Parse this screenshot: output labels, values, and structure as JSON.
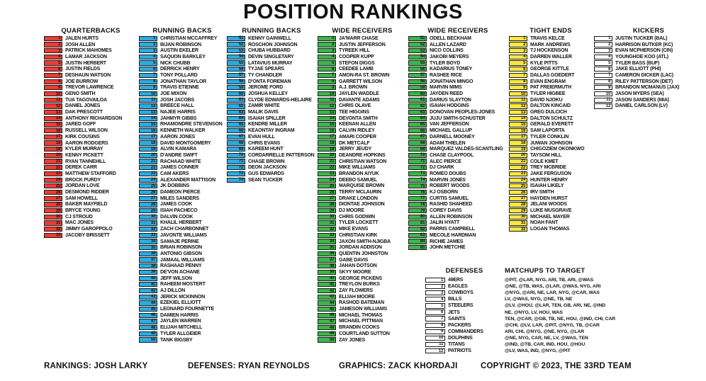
{
  "title": "POSITION RANKINGS",
  "colors": {
    "qb_red": "#ee3b33",
    "rb_blue": "#2babe2",
    "wr_green": "#3cb54a",
    "te_yellow": "#f9e73e",
    "plain_white": "#ffffff"
  },
  "columns": [
    {
      "header": "QUARTERBACKS",
      "start": 1,
      "color": "#ee3b33",
      "players": [
        "JALEN HURTS",
        "JOSH ALLEN",
        "PATRICK MAHOMES",
        "LAMAR JACKSON",
        "JUSTIN HERBERT",
        "JUSTIN FIELDS",
        "DESHAUN WATSON",
        "JOE BURROW",
        "TREVOR LAWRENCE",
        "GENO SMITH",
        "TUA TAGOVAILOA",
        "DANIEL JONES",
        "DAK PRESCOTT",
        "ANTHONY RICHARDSON",
        "JARED GOFF",
        "RUSSELL WILSON",
        "KIRK COUSINS",
        "AARON RODGERS",
        "KYLER MURRAY",
        "KENNY PICKETT",
        "RYAN TANNEHILL",
        "DEREK CARR",
        "MATTHEW STAFFORD",
        "BROCK PURDY",
        "JORDAN LOVE",
        "DESMOND RIDDER",
        "SAM HOWELL",
        "BAKER MAYFIELD",
        "BRYCE YOUNG",
        "CJ STROUD",
        "MAC JONES",
        "JIMMY GAROPPOLO",
        "JACOBY BRISSETT"
      ]
    },
    {
      "header": "RUNNING BACKS",
      "start": 1,
      "color": "#2babe2",
      "players": [
        "CHRISTIAN MCCAFFREY",
        "BIJAN ROBINSON",
        "AUSTIN EKELER",
        "SAQUON BARKLEY",
        "NICK CHUBB",
        "DERRICK HENRY",
        "TONY POLLARD",
        "JONATHAN TAYLOR",
        "TRAVIS ETIENNE",
        "JOE MIXON",
        "JOSH JACOBS",
        "BREECE HALL",
        "NAJEE HARRIS",
        "JAHMYR GIBBS",
        "RHAMONDRE STEVENSON",
        "KENNETH WALKER",
        "AARON JONES",
        "DAVID MONTGOMERY",
        "ALVIN KAMARA",
        "D'ANDRE SWIFT",
        "RACHAAD WHITE",
        "JAMES CONNER",
        "CAM AKERS",
        "ALEXANDER MATTISON",
        "JK DOBBINS",
        "DAMEON PIERCE",
        "MILES SANDERS",
        "JAMES COOK",
        "ISIAH PACHECO",
        "DALVIN COOK",
        "KHALIL HERBERT",
        "ZACH CHARBONNET",
        "JAVONTE WILLIAMS",
        "SAMAJE PERINE",
        "BRIAN ROBINSON",
        "ANTONIO GIBSON",
        "JAMAAL WILLIAMS",
        "RASHAAD PENNY",
        "DE'VON ACHANE",
        "JEFF WILSON",
        "RAHEEM MOSTERT",
        "AJ DILLON",
        "JERICK MCKINNON",
        "EZEKIEL ELLIOTT",
        "LEONARD FOURNETTE",
        "DAMIEN HARRIS",
        "JAYLEN WARREN",
        "ELIJAH MITCHELL",
        "TYLER ALLGEIER",
        "TANK BIGSBY"
      ]
    },
    {
      "header": "RUNNING BACKS",
      "start": 51,
      "color": "#2babe2",
      "players": [
        "KENNY GAINWELL",
        "ROSCHON JOHNSON",
        "CHUBA HUBBARD",
        "DEVIN SINGLETARY",
        "LATAVIUS MURRAY",
        "TYJAE SPEARS",
        "TY CHANDLER",
        "D'ONTA FOREMAN",
        "JEROME FORD",
        "JOSHUA KELLEY",
        "CLYDE EDWARDS-HELAIRE",
        "ZAMIR WHITE",
        "MALIK DAVIS",
        "ISAIAH SPILLER",
        "KENDRE MILLER",
        "KEAONTAY INGRAM",
        "EVAN HULL",
        "CHRIS EVANS",
        "KAREEM HUNT",
        "CORDARRELLE PATTERSON",
        "CHASE BROWN",
        "DEON JACKSON",
        "GUS EDWARDS",
        "SEAN TUCKER"
      ]
    },
    {
      "header": "WIDE RECEIVERS",
      "start": 1,
      "color": "#3cb54a",
      "players": [
        "JA'MARR CHASE",
        "JUSTIN JEFFERSON",
        "TYREEK HILL",
        "COOPER KUPP",
        "STEFON DIGGS",
        "CEEDEE LAMB",
        "AMON-RA ST. BROWN",
        "GARRETT WILSON",
        "A.J. BROWN",
        "JAYLEN WADDLE",
        "DAVANTE ADAMS",
        "CHRIS OLAVE",
        "TEE HIGGINS",
        "DEVONTA SMITH",
        "KEENAN ALLEN",
        "CALVIN RIDLEY",
        "AMARI COOPER",
        "DK METCALF",
        "JERRY JEUDY",
        "DEANDRE HOPKINS",
        "CHRISTIAN WATSON",
        "MIKE WILLIAMS",
        "BRANDON AIYUK",
        "DEEBO SAMUEL",
        "MARQUISE BROWN",
        "TERRY MCLAURIN",
        "DRAKE LONDON",
        "DIONTAE JOHNSON",
        "DJ MOORE",
        "CHRIS GODWIN",
        "TYLER LOCKETT",
        "MIKE EVANS",
        "CHRISTIAN KIRK",
        "JAXON SMITH-NJIGBA",
        "JORDAN ADDISON",
        "QUENTIN JOHNSTON",
        "GABE DAVIS",
        "JAHAN DOTSON",
        "SKYY MOORE",
        "GEORGE PICKENS",
        "TREYLON BURKS",
        "ZAY FLOWERS",
        "ELIJAH MOORE",
        "RASHOD BATEMAN",
        "JAMESON WILLIAMS",
        "MICHAEL THOMAS",
        "MICHAEL PITTMAN",
        "BRANDIN COOKS",
        "COURTLAND SUTTON",
        "ZAY JONES"
      ]
    },
    {
      "header": "WIDE RECEIVERS",
      "start": 51,
      "color": "#3cb54a",
      "players": [
        "ODELL BECKHAM",
        "ALLEN LAZARD",
        "NICO COLLINS",
        "JAKOBI MEYERS",
        "TYLER BOYD",
        "KADARIUS TONEY",
        "RASHEE RICE",
        "JONATHAN MINGO",
        "MARVIN MIMS",
        "JAYDEN REED",
        "DARIUS SLAYTON",
        "ISAIAH HODGINS",
        "DONOVAN PEOPLES-JONES",
        "JUJU SMITH-SCHUSTER",
        "VAN JEFFERSON",
        "MICHAEL GALLUP",
        "DARNELL MOONEY",
        "ADAM THIELEN",
        "MARQUEZ VALDES-SCANTLING",
        "CHASE CLAYPOOL",
        "ALEC PIERCE",
        "DJ CHARK",
        "ROMEO DOUBS",
        "MARVIN JONES",
        "ROBERT WOODS",
        "KJ OSBORN",
        "CURTIS SAMUEL",
        "RASHID SHAHEED",
        "COREY DAVIS",
        "ALLEN ROBINSON",
        "JALIN HYATT",
        "PARRIS CAMPBELL",
        "MECOLE HARDMAN",
        "RICHIE JAMES",
        "JOHN METCHIE"
      ]
    },
    {
      "header": "TIGHT ENDS",
      "start": 1,
      "color": "#f9e73e",
      "players": [
        "TRAVIS KELCE",
        "MARK ANDREWS",
        "TJ HOCKENSON",
        "DARREN WALLER",
        "KYLE PITTS",
        "GEORGE KITTLE",
        "DALLAS GOEDERT",
        "EVAN ENGRAM",
        "PAT FREIERMUTH",
        "TYLER HIGBEE",
        "DAVID NJOKU",
        "DALTON KINCAID",
        "GREG DULCICH",
        "DALTON SCHULTZ",
        "GERALD EVERETT",
        "SAM LAPORTA",
        "TYLER CONKLIN",
        "JUWAN JOHNSON",
        "CHIGOZIEM OKONKWO",
        "TAYSOM HILL",
        "COLE KMET",
        "TREY MCBRIDE",
        "JAKE FERGUSON",
        "HUNTER HENRY",
        "ISAIAH LIKELY",
        "IRV SMITH",
        "HAYDEN HURST",
        "JELANI WOODS",
        "LUKE MUSGRAVE",
        "MICHAEL MAYER",
        "NOAH FANT",
        "LOGAN THOMAS"
      ]
    },
    {
      "header": "KICKERS",
      "start": 1,
      "color": "#ffffff",
      "players": [
        "JUSTIN TUCKER (BAL)",
        "HARRISON BUTKER (KC)",
        "EVAN MCPHERSON (CIN)",
        "YOUNGHOE KOO (ATL)",
        "TYLER BASS (BUF)",
        "JAKE ELLIOTT (PHI)",
        "CAMERON DICKER (LAC)",
        "RILEY PATTERSON (DET)",
        "BRANDON MCMANUS (JAX)",
        "JASON MYERS (SEA)",
        "JASON SANDERS (MIA)",
        "DANIEL CARLSON (LV)"
      ]
    }
  ],
  "defenses": {
    "header": "DEFENSES",
    "start": 1,
    "color": "#ffffff",
    "teams": [
      "49ERS",
      "EAGLES",
      "COWBOYS",
      "BILLS",
      "STEELERS",
      "JETS",
      "SAINTS",
      "PACKERS",
      "COMMANDERS",
      "DOLPHINS",
      "TITANS",
      "PATRIOTS"
    ]
  },
  "matchups": {
    "header": "MATCHUPS TO TARGET",
    "rows": [
      "@PIT, @LAR, NYG, ARI, TB, ARI, @WAS",
      "@NE, @TB, WAS, @LAR, @WAS, NYG, ARI",
      "@NYG, @ARI, NE, LAR, NYG, @CAR, WAS",
      "LV, @WAS, NYG, @NE, TB, NE",
      "@LV, @HOU, @LAR, TEN, GB, ARI, NE, @IND",
      "NE, @NYG, LV, HOU, WAS",
      "TEN, @CAR, @GB, TB, NE, HOU, @IND, CHI, CAR",
      "@CHI, @LV, LAR, @PIT, @NYG, TB, @CAR",
      "ARI, CHI, @NYG, @NE, NYG, @LAR",
      "@NE, NYG, CAR, NE, LV, @WAS, TEN",
      "@IND, @TB, CAR, IND, HOU, @HOU",
      "@LV, WAS, IND, @NYG, @PIT"
    ]
  },
  "footer": {
    "rankings": "RANKINGS: JOSH LARKY",
    "defenses": "DEFENSES: RYAN REYNOLDS",
    "graphics": "GRAPHICS: ZACK KHORDAJI",
    "copyright": "COPYRIGHT © 2023, THE 33RD TEAM"
  }
}
